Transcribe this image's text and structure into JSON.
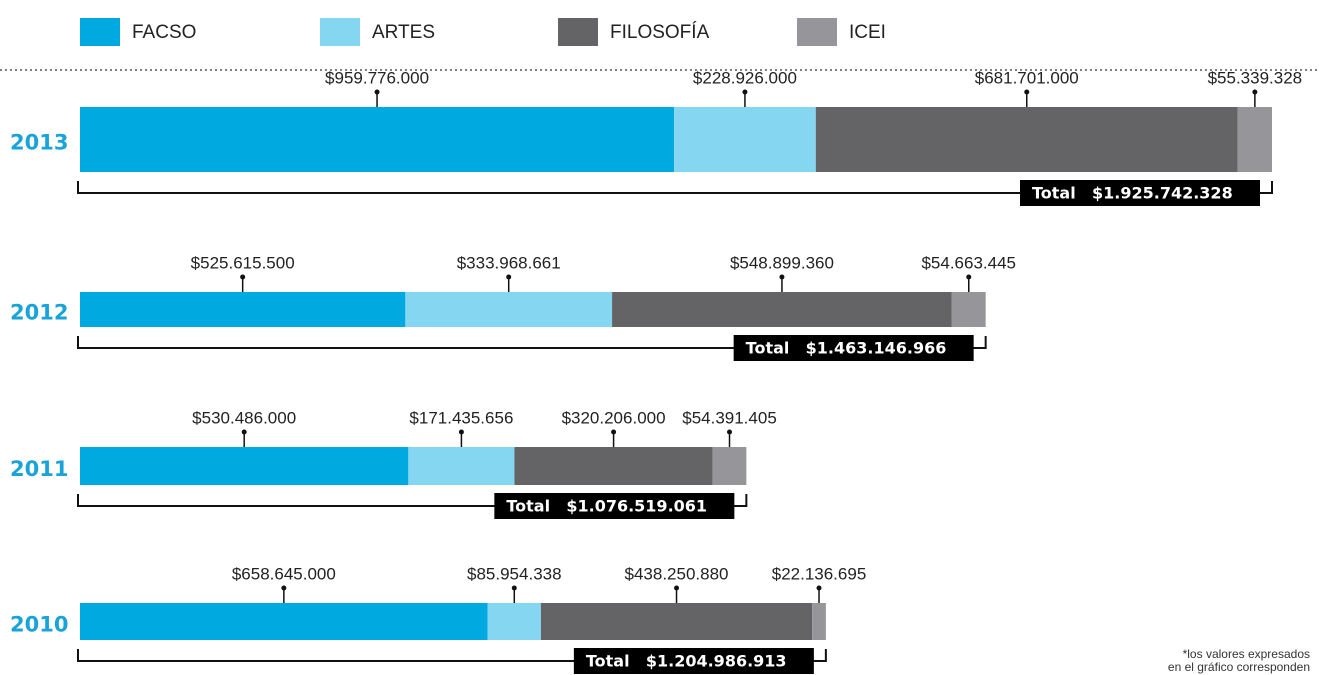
{
  "chart_data": {
    "type": "bar",
    "orientation": "horizontal",
    "stacked": true,
    "categories": [
      "2013",
      "2012",
      "2011",
      "2010"
    ],
    "series": [
      {
        "name": "FACSO",
        "color": "#00a9e0",
        "values": [
          959776000,
          525615500,
          530486000,
          658645000
        ],
        "value_labels": [
          "$959.776.000",
          "$525.615.500",
          "$530.486.000",
          "$658.645.000"
        ]
      },
      {
        "name": "ARTES",
        "color": "#85d6f0",
        "values": [
          228926000,
          333968661,
          171435656,
          85954338
        ],
        "value_labels": [
          "$228.926.000",
          "$333.968.661",
          "$171.435.656",
          "$85.954.338"
        ]
      },
      {
        "name": "FILOSOFÍA",
        "color": "#646466",
        "values": [
          681701000,
          548899360,
          320206000,
          438250880
        ],
        "value_labels": [
          "$681.701.000",
          "$548.899.360",
          "$320.206.000",
          "$438.250.880"
        ]
      },
      {
        "name": "ICEI",
        "color": "#96969a",
        "values": [
          55339328,
          54663445,
          54391405,
          22136695
        ],
        "value_labels": [
          "$55.339.328",
          "$54.663.445",
          "$54.391.405",
          "$22.136.695"
        ]
      }
    ],
    "totals": {
      "label": "Total",
      "values": [
        1925742328,
        1463146966,
        1076519061,
        1204986913
      ],
      "value_labels": [
        "$1.925.742.328",
        "$1.463.146.966",
        "$1.076.519.061",
        "$1.204.986.913"
      ]
    },
    "note": [
      "*los valores expresados",
      "en el gráfico corresponden"
    ]
  }
}
